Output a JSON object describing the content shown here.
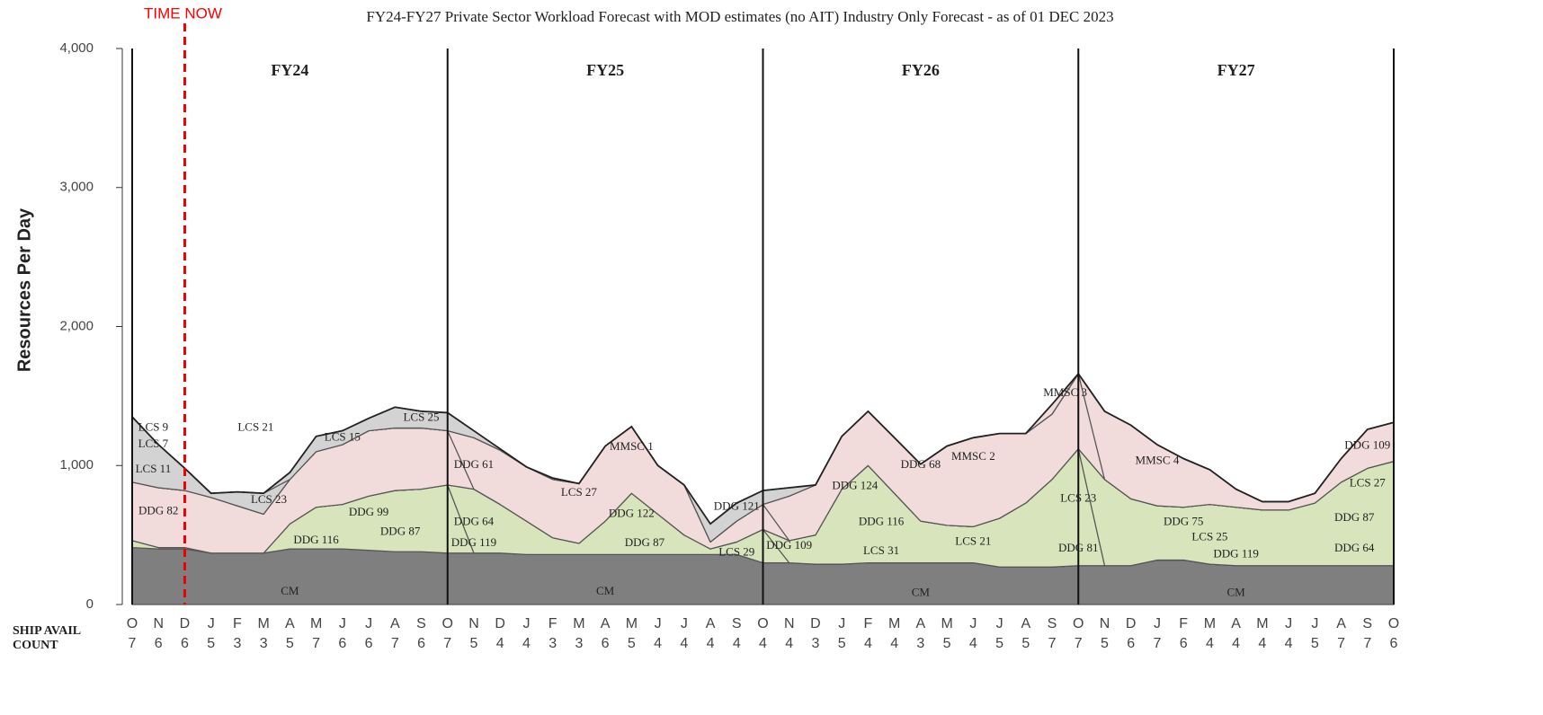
{
  "chart_data": {
    "type": "area",
    "stacked": true,
    "title": "FY24-FY27 Private Sector Workload Forecast with MOD estimates (no AIT) Industry Only Forecast - as of 01 DEC 2023",
    "y_label": "Resources Per Day",
    "count_label": [
      "SHIP AVAIL",
      "COUNT"
    ],
    "time_now": {
      "label": "TIME NOW",
      "index": 2
    },
    "periods": [
      "FY24",
      "FY25",
      "FY26",
      "FY27"
    ],
    "categories": [
      "O",
      "N",
      "D",
      "J",
      "F",
      "M",
      "A",
      "M",
      "J",
      "J",
      "A",
      "S",
      "O",
      "N",
      "D",
      "J",
      "F",
      "M",
      "A",
      "M",
      "J",
      "J",
      "A",
      "S",
      "O",
      "N",
      "D",
      "J",
      "F",
      "M",
      "A",
      "M",
      "J",
      "J",
      "A",
      "S",
      "O",
      "N",
      "D",
      "J",
      "F",
      "M",
      "A",
      "M",
      "J",
      "J",
      "A",
      "S",
      "O"
    ],
    "counts": [
      7,
      6,
      6,
      5,
      3,
      3,
      5,
      7,
      6,
      6,
      7,
      6,
      7,
      5,
      4,
      4,
      3,
      3,
      6,
      5,
      4,
      4,
      4,
      4,
      4,
      4,
      3,
      5,
      4,
      4,
      3,
      5,
      4,
      5,
      5,
      7,
      7,
      5,
      6,
      7,
      6,
      4,
      4,
      4,
      4,
      5,
      7,
      7,
      6
    ],
    "ylim": [
      0,
      4000
    ],
    "yticks": [
      0,
      {
        "value": 1000,
        "label": "1,000"
      },
      {
        "value": 2000,
        "label": "2,000"
      },
      {
        "value": 3000,
        "label": "3,000"
      },
      {
        "value": 4000,
        "label": "4,000"
      }
    ],
    "series": [
      {
        "name": "CM",
        "color": "#7f7f7f",
        "values": [
          410,
          400,
          400,
          370,
          370,
          370,
          400,
          400,
          400,
          390,
          380,
          380,
          370,
          370,
          370,
          360,
          360,
          360,
          360,
          360,
          360,
          360,
          360,
          360,
          300,
          300,
          290,
          290,
          300,
          300,
          300,
          300,
          300,
          270,
          270,
          270,
          280,
          280,
          280,
          320,
          320,
          290,
          280,
          280,
          280,
          280,
          280,
          280,
          280
        ]
      },
      {
        "name": "DDG 116",
        "color": "#d7e4bc",
        "values": [
          50,
          10,
          10,
          0,
          0,
          0,
          180,
          300,
          320,
          390,
          440,
          450,
          490,
          0,
          0,
          0,
          0,
          0,
          0,
          0,
          0,
          0,
          0,
          0,
          0,
          0,
          0,
          0,
          0,
          0,
          0,
          0,
          0,
          0,
          0,
          0,
          0,
          0,
          0,
          0,
          0,
          0,
          0,
          0,
          0,
          0,
          0,
          0,
          0
        ]
      },
      {
        "name": "DDG 122",
        "color": "#d7e4bc",
        "values": [
          0,
          0,
          0,
          0,
          0,
          0,
          0,
          0,
          0,
          0,
          0,
          0,
          0,
          460,
          350,
          240,
          120,
          80,
          240,
          440,
          290,
          140,
          40,
          90,
          240,
          0,
          0,
          0,
          0,
          0,
          0,
          0,
          0,
          0,
          0,
          0,
          0,
          0,
          0,
          0,
          0,
          0,
          0,
          0,
          0,
          0,
          0,
          0,
          0
        ]
      },
      {
        "name": "DDG 124",
        "color": "#d7e4bc",
        "values": [
          0,
          0,
          0,
          0,
          0,
          0,
          0,
          0,
          0,
          0,
          0,
          0,
          0,
          0,
          0,
          0,
          0,
          0,
          0,
          0,
          0,
          0,
          0,
          0,
          0,
          160,
          210,
          540,
          700,
          500,
          300,
          270,
          260,
          350,
          460,
          630,
          840,
          0,
          0,
          0,
          0,
          0,
          0,
          0,
          0,
          0,
          0,
          0,
          0
        ]
      },
      {
        "name": "DDG 75",
        "color": "#d7e4bc",
        "values": [
          0,
          0,
          0,
          0,
          0,
          0,
          0,
          0,
          0,
          0,
          0,
          0,
          0,
          0,
          0,
          0,
          0,
          0,
          0,
          0,
          0,
          0,
          0,
          0,
          0,
          0,
          0,
          0,
          0,
          0,
          0,
          0,
          0,
          0,
          0,
          0,
          0,
          620,
          480,
          390,
          380,
          430,
          420,
          400,
          400,
          450,
          600,
          700,
          750
        ]
      },
      {
        "name": "DDG 82",
        "color": "#f2dcdb",
        "values": [
          420,
          430,
          410,
          400,
          340,
          280,
          320,
          400,
          430,
          470,
          450,
          440,
          390,
          0,
          0,
          0,
          0,
          0,
          0,
          0,
          0,
          0,
          0,
          0,
          0,
          0,
          0,
          0,
          0,
          0,
          0,
          0,
          0,
          0,
          0,
          0,
          0,
          0,
          0,
          0,
          0,
          0,
          0,
          0,
          0,
          0,
          0,
          0,
          0
        ]
      },
      {
        "name": "DDG 61",
        "color": "#f2dcdb",
        "values": [
          0,
          0,
          0,
          0,
          0,
          0,
          0,
          0,
          0,
          0,
          0,
          0,
          0,
          370,
          390,
          390,
          420,
          430,
          540,
          480,
          350,
          360,
          50,
          150,
          180,
          0,
          0,
          0,
          0,
          0,
          0,
          0,
          0,
          0,
          0,
          0,
          0,
          0,
          0,
          0,
          0,
          0,
          0,
          0,
          0,
          0,
          0,
          0,
          0
        ]
      },
      {
        "name": "MMSC 2",
        "color": "#f2dcdb",
        "values": [
          0,
          0,
          0,
          0,
          0,
          0,
          0,
          0,
          0,
          0,
          0,
          0,
          0,
          0,
          0,
          0,
          0,
          0,
          0,
          0,
          0,
          0,
          0,
          0,
          0,
          320,
          360,
          380,
          390,
          400,
          410,
          570,
          640,
          610,
          500,
          470,
          540,
          0,
          0,
          0,
          0,
          0,
          0,
          0,
          0,
          0,
          0,
          0,
          0
        ]
      },
      {
        "name": "MMSC 4",
        "color": "#f2dcdb",
        "values": [
          0,
          0,
          0,
          0,
          0,
          0,
          0,
          0,
          0,
          0,
          0,
          0,
          0,
          0,
          0,
          0,
          0,
          0,
          0,
          0,
          0,
          0,
          0,
          0,
          0,
          0,
          0,
          0,
          0,
          0,
          0,
          0,
          0,
          0,
          0,
          0,
          0,
          490,
          530,
          440,
          350,
          250,
          130,
          60,
          60,
          70,
          170,
          280,
          280
        ]
      },
      {
        "name": "LCS 9",
        "color": "#d3d3d3",
        "values": [
          470,
          310,
          160,
          30,
          100,
          150,
          0,
          0,
          0,
          0,
          0,
          0,
          0,
          0,
          0,
          0,
          0,
          0,
          0,
          0,
          0,
          0,
          0,
          0,
          0,
          0,
          0,
          0,
          0,
          0,
          0,
          0,
          0,
          0,
          0,
          0,
          0,
          0,
          0,
          0,
          0,
          0,
          0,
          0,
          0,
          0,
          0,
          0,
          0
        ]
      },
      {
        "name": "LCS 15",
        "color": "#d3d3d3",
        "values": [
          0,
          0,
          0,
          0,
          0,
          0,
          50,
          110,
          100,
          90,
          150,
          120,
          130,
          50,
          10,
          0,
          10,
          0,
          0,
          0,
          0,
          0,
          0,
          0,
          0,
          0,
          0,
          0,
          0,
          0,
          0,
          0,
          0,
          0,
          0,
          0,
          0,
          0,
          0,
          0,
          0,
          0,
          0,
          0,
          0,
          0,
          0,
          0,
          0
        ]
      },
      {
        "name": "DDG 121",
        "color": "#d3d3d3",
        "values": [
          0,
          0,
          0,
          0,
          0,
          0,
          0,
          0,
          0,
          0,
          0,
          0,
          0,
          0,
          0,
          0,
          0,
          0,
          0,
          0,
          0,
          0,
          130,
          130,
          100,
          60,
          0,
          0,
          0,
          0,
          0,
          0,
          0,
          0,
          0,
          0,
          0,
          0,
          0,
          0,
          0,
          0,
          0,
          0,
          0,
          0,
          0,
          0,
          0
        ]
      },
      {
        "name": "MMSC 3",
        "color": "#f2dcdb",
        "values": [
          0,
          0,
          0,
          0,
          0,
          0,
          0,
          0,
          0,
          0,
          0,
          0,
          0,
          0,
          0,
          0,
          0,
          0,
          0,
          0,
          0,
          0,
          0,
          0,
          0,
          0,
          0,
          0,
          0,
          0,
          0,
          0,
          0,
          0,
          0,
          70,
          0,
          0,
          0,
          0,
          0,
          0,
          0,
          0,
          0,
          0,
          0,
          0,
          0
        ]
      }
    ],
    "annotations": [
      "LCS 7",
      "LCS 11",
      "LCS 21",
      "LCS 23",
      "DDG 99",
      "DDG 87",
      "LCS 25",
      "MMSC 1",
      "LCS 27",
      "DDG 119",
      "DDG 87",
      "DDG 64",
      "LCS 29",
      "DDG 109",
      "LCS 31",
      "DDG 116",
      "DDG 68",
      "LCS 21",
      "LCS 23",
      "DDG 81",
      "LCS 25",
      "DDG 119",
      "DDG 87",
      "DDG 64",
      "LCS 27",
      "DDG 109",
      "CM",
      "CM",
      "CM"
    ]
  }
}
